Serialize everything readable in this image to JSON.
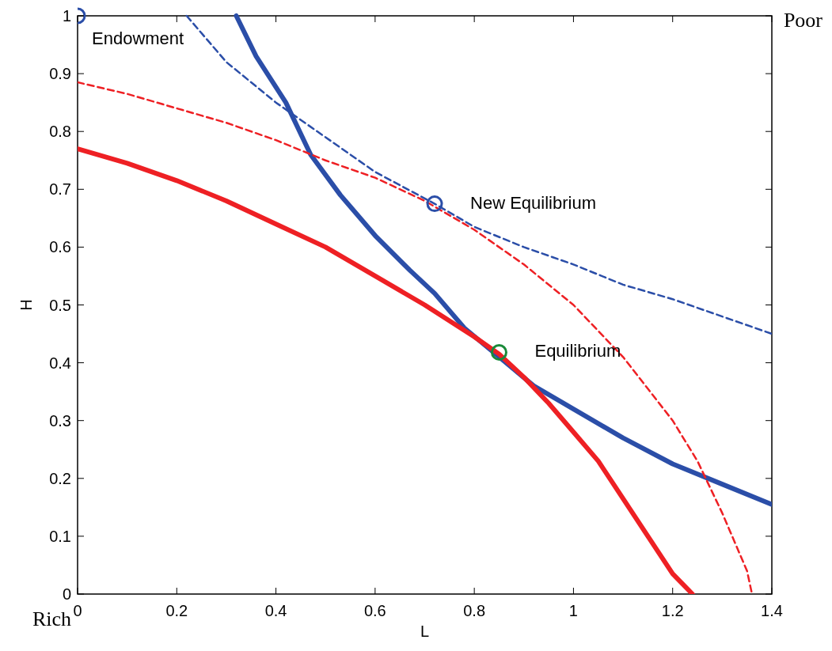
{
  "chart_data": {
    "type": "line",
    "xlabel": "L",
    "ylabel": "H",
    "xlim": [
      0,
      1.4
    ],
    "ylim": [
      0,
      1
    ],
    "xticks": [
      0,
      0.2,
      0.4,
      0.6,
      0.8,
      1,
      1.2,
      1.4
    ],
    "yticks": [
      0,
      0.1,
      0.2,
      0.3,
      0.4,
      0.5,
      0.6,
      0.7,
      0.8,
      0.9,
      1
    ],
    "grid": false,
    "series": [
      {
        "color": "#2b4ea8",
        "line_style": "solid",
        "x": [
          0.32,
          0.36,
          0.42,
          0.47,
          0.53,
          0.6,
          0.67,
          0.72,
          0.78,
          0.85,
          0.92,
          1.0,
          1.1,
          1.2,
          1.3,
          1.4
        ],
        "values": [
          1.0,
          0.93,
          0.85,
          0.76,
          0.69,
          0.62,
          0.56,
          0.52,
          0.46,
          0.41,
          0.36,
          0.32,
          0.27,
          0.225,
          0.19,
          0.155
        ]
      },
      {
        "color": "#ee2024",
        "line_style": "solid",
        "x": [
          0,
          0.1,
          0.2,
          0.3,
          0.4,
          0.5,
          0.6,
          0.7,
          0.8,
          0.85,
          0.9,
          0.95,
          1.0,
          1.05,
          1.1,
          1.15,
          1.2,
          1.24
        ],
        "values": [
          0.77,
          0.745,
          0.715,
          0.68,
          0.64,
          0.6,
          0.55,
          0.5,
          0.445,
          0.415,
          0.375,
          0.33,
          0.28,
          0.23,
          0.165,
          0.1,
          0.035,
          0
        ]
      },
      {
        "color": "#2b4ea8",
        "line_style": "dashed",
        "x": [
          0.22,
          0.3,
          0.4,
          0.5,
          0.6,
          0.72,
          0.8,
          0.9,
          1.0,
          1.1,
          1.2,
          1.3,
          1.4
        ],
        "values": [
          1.0,
          0.92,
          0.85,
          0.79,
          0.73,
          0.675,
          0.635,
          0.6,
          0.57,
          0.535,
          0.51,
          0.48,
          0.45
        ]
      },
      {
        "color": "#ee2024",
        "line_style": "dashed",
        "x": [
          0,
          0.1,
          0.2,
          0.3,
          0.4,
          0.5,
          0.6,
          0.7,
          0.8,
          0.9,
          1.0,
          1.1,
          1.2,
          1.25,
          1.3,
          1.35,
          1.36
        ],
        "values": [
          0.885,
          0.865,
          0.84,
          0.815,
          0.785,
          0.75,
          0.72,
          0.68,
          0.63,
          0.57,
          0.5,
          0.41,
          0.3,
          0.23,
          0.14,
          0.04,
          0
        ]
      },
      {
        "type": "scatter",
        "marker": "circle",
        "color": "#2b4ea8",
        "x": [
          0,
          0.72
        ],
        "values": [
          1,
          0.675
        ]
      },
      {
        "type": "scatter",
        "marker": "circle",
        "color": "#1a8a3a",
        "x": [
          0.85
        ],
        "values": [
          0.418
        ]
      }
    ],
    "annotations": [
      {
        "text": "Endowment",
        "x": 0,
        "y": 1
      },
      {
        "text": "New Equilibrium",
        "x": 0.72,
        "y": 0.675
      },
      {
        "text": "Equilibrium",
        "x": 0.85,
        "y": 0.418
      },
      "Poor",
      "Rich"
    ]
  }
}
